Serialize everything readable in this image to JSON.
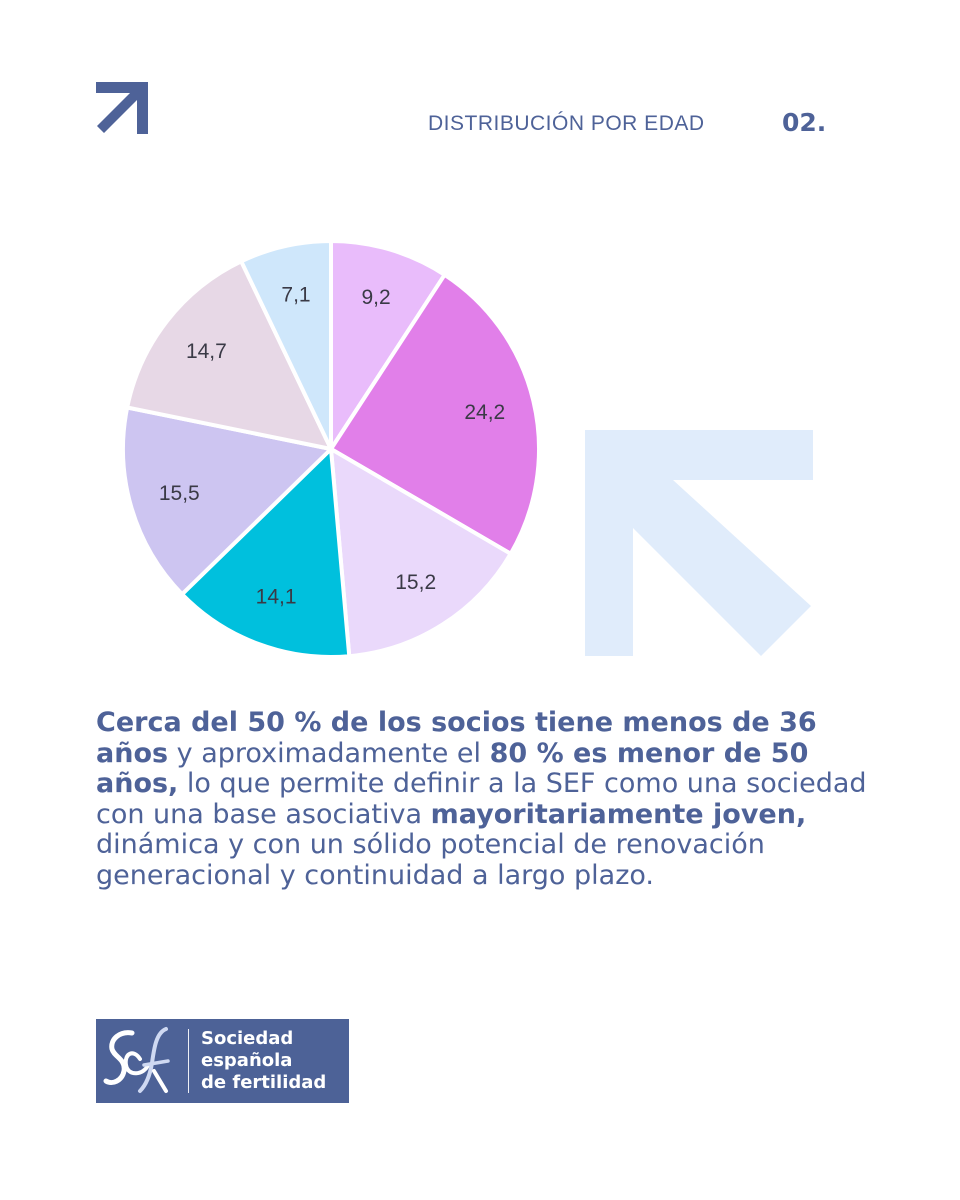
{
  "header": {
    "title": "DISTRIBUCIÓN POR EDAD",
    "number": "02."
  },
  "icons": {
    "corner": "arrow-up-right-icon",
    "decor": "arrow-up-left-icon",
    "brand": "sef-logo-icon"
  },
  "colors": {
    "brand": "#4e6298",
    "arrow_decor": "#e0ecfb"
  },
  "chart_data": {
    "type": "pie",
    "title": "",
    "start": "top",
    "direction": "clockwise",
    "values": [
      9.2,
      24.2,
      15.2,
      14.1,
      15.5,
      14.7,
      7.1
    ],
    "labels": [
      "9,2",
      "24,2",
      "15,2",
      "14,1",
      "15,5",
      "14,7",
      "7,1"
    ],
    "colors": [
      "#e9bcfb",
      "#e17fe9",
      "#ead9fb",
      "#00c0dd",
      "#cdc5f1",
      "#e7d8e6",
      "#cfe7fb"
    ]
  },
  "paragraph": {
    "p1": "Cerca del 50 % de los socios tiene menos de 36 años",
    "p2": " y aproximadamente el ",
    "p3": "80 % es menor de 50 años,",
    "p4": " lo que permite definir a la SEF como una sociedad con una base asociativa ",
    "p5": "mayoritariamente joven,",
    "p6": " dinámica y con un sólido potencial de renovación generacional y continuidad a largo plazo."
  },
  "logo": {
    "line1": "Sociedad",
    "line2": "española",
    "line3": "de fertilidad"
  }
}
